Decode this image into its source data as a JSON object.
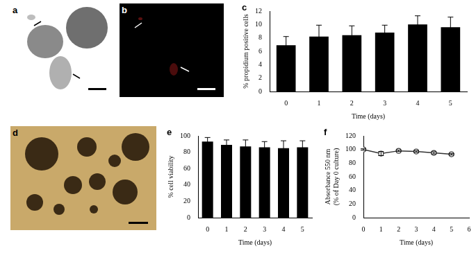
{
  "images": [
    {
      "label": "a"
    },
    {
      "label": "b"
    },
    {
      "label": "d"
    }
  ],
  "chart_data": [
    {
      "title": "c",
      "type": "bar",
      "categories": [
        "0",
        "1",
        "2",
        "3",
        "4",
        "5"
      ],
      "values": [
        6.9,
        8.2,
        8.4,
        8.8,
        10.0,
        9.6
      ],
      "errors": [
        1.3,
        1.7,
        1.4,
        1.1,
        1.3,
        1.5
      ],
      "color": "#000000",
      "x_label": "Time (days)",
      "y_label": "% propidium positive cells",
      "ylim": [
        0,
        12
      ],
      "yticks": [
        0,
        2,
        4,
        6,
        8,
        10,
        12
      ],
      "grid": false
    },
    {
      "title": "e",
      "type": "bar",
      "categories": [
        "0",
        "1",
        "2",
        "3",
        "4",
        "5"
      ],
      "values": [
        93,
        89,
        87,
        86,
        85,
        86
      ],
      "errors": [
        5,
        6,
        8,
        7,
        9,
        8
      ],
      "color": "#000000",
      "x_label": "Time (days)",
      "y_label": "% cell viability",
      "ylim": [
        0,
        100
      ],
      "yticks": [
        0,
        20,
        40,
        60,
        80,
        100
      ],
      "grid": false
    },
    {
      "title": "f",
      "type": "line",
      "x": [
        0,
        1,
        2,
        3,
        4,
        5
      ],
      "values": [
        100,
        94,
        98,
        97,
        95,
        93
      ],
      "errors": [
        1,
        3,
        1,
        1,
        1.5,
        1
      ],
      "color": "#333333",
      "marker": "circle",
      "x_label": "Time (days)",
      "y_label": [
        "Absorbance 550 nm",
        "(% of Day 0 culture)"
      ],
      "xlim": [
        0,
        6
      ],
      "xticks": [
        0,
        1,
        2,
        3,
        4,
        5,
        6
      ],
      "ylim": [
        0,
        120
      ],
      "yticks": [
        0,
        20,
        40,
        60,
        80,
        100,
        120
      ],
      "grid": false
    }
  ]
}
